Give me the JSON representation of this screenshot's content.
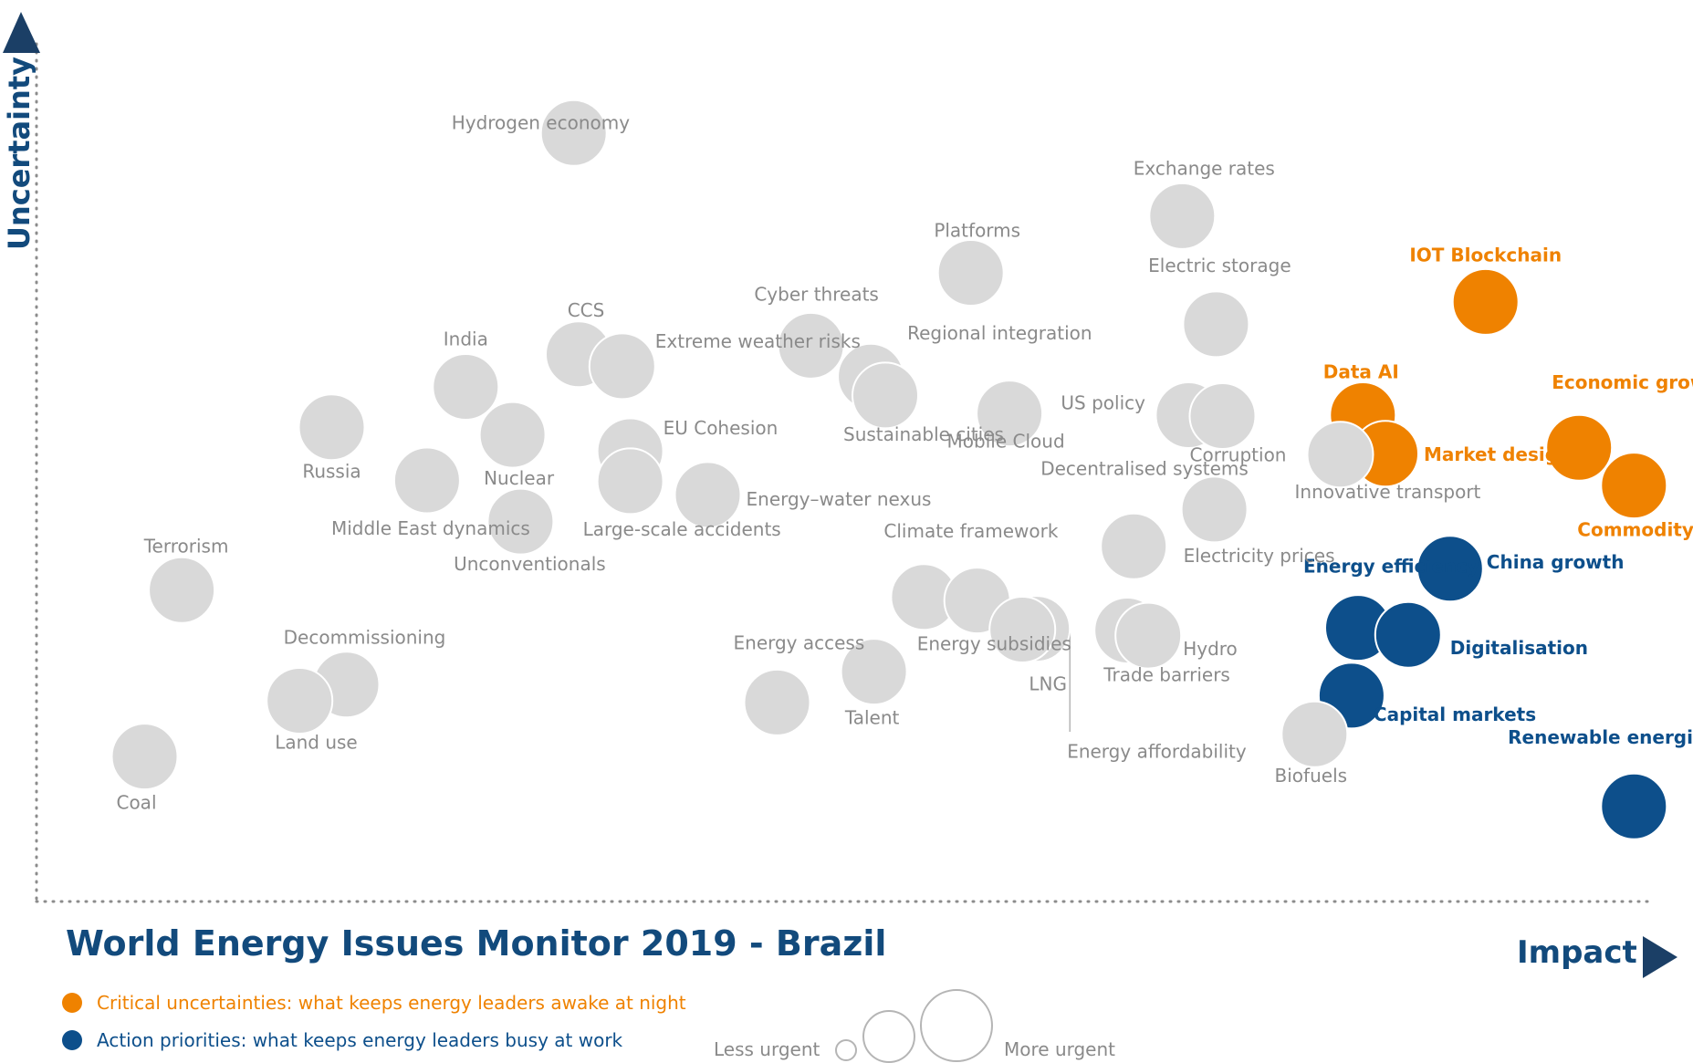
{
  "title": "World Energy Issues Monitor 2019 - Brazil",
  "x_axis_label": "Impact",
  "y_axis_label": "Uncertainty",
  "legend": {
    "critical": {
      "label": "Critical uncertainties: what keeps energy leaders awake at night",
      "color": "#ef8200"
    },
    "action": {
      "label": "Action priorities: what keeps energy leaders busy at work",
      "color": "#0d4f8b"
    }
  },
  "size_legend": {
    "less": "Less urgent",
    "more": "More urgent"
  },
  "colors": {
    "neutral": "#d9d9d9",
    "neutral_text": "#8a8a8a",
    "axis": "#1b3f66"
  },
  "chart_data": {
    "type": "scatter",
    "title": "World Energy Issues Monitor 2019 - Brazil",
    "xlabel": "Impact",
    "ylabel": "Uncertainty",
    "xlim": [
      0,
      1
    ],
    "ylim": [
      0,
      1
    ],
    "grid": false,
    "series": [
      {
        "name": "Critical uncertainties: what keeps energy leaders awake at night",
        "category": "critical",
        "points": [
          {
            "label": "IOT Blockchain",
            "x": 0.898,
            "y": 0.699
          },
          {
            "label": "Data AI",
            "x": 0.822,
            "y": 0.567
          },
          {
            "label": "Market design",
            "x": 0.836,
            "y": 0.522
          },
          {
            "label": "Economic growth",
            "x": 0.956,
            "y": 0.529
          },
          {
            "label": "Commodity Prices",
            "x": 0.99,
            "y": 0.485
          }
        ]
      },
      {
        "name": "Action priorities: what keeps energy leaders busy at work",
        "category": "action",
        "points": [
          {
            "label": "China growth",
            "x": 0.876,
            "y": 0.388
          },
          {
            "label": "Energy efficiency",
            "x": 0.819,
            "y": 0.319
          },
          {
            "label": "Digitalisation",
            "x": 0.85,
            "y": 0.311
          },
          {
            "label": "Capital markets",
            "x": 0.815,
            "y": 0.24
          },
          {
            "label": "Renewable energies",
            "x": 0.99,
            "y": 0.111
          }
        ]
      },
      {
        "category": "other",
        "points": [
          {
            "label": "Hydrogen economy",
            "x": 0.333,
            "y": 0.896
          },
          {
            "label": "Exchange rates",
            "x": 0.71,
            "y": 0.799
          },
          {
            "label": "Platforms",
            "x": 0.579,
            "y": 0.733
          },
          {
            "label": "Electric storage",
            "x": 0.731,
            "y": 0.673
          },
          {
            "label": "CCS",
            "x": 0.336,
            "y": 0.638
          },
          {
            "label": "Extreme weather risks",
            "x": 0.363,
            "y": 0.624
          },
          {
            "label": "Cyber threats",
            "x": 0.48,
            "y": 0.648
          },
          {
            "label": "Regional integration",
            "x": 0.517,
            "y": 0.612
          },
          {
            "label": "Sustainable cities",
            "x": 0.526,
            "y": 0.59
          },
          {
            "label": "India",
            "x": 0.266,
            "y": 0.6
          },
          {
            "label": "Nuclear",
            "x": 0.295,
            "y": 0.544
          },
          {
            "label": "Russia",
            "x": 0.183,
            "y": 0.553
          },
          {
            "label": "Middle East dynamics",
            "x": 0.242,
            "y": 0.491
          },
          {
            "label": "Mobile Cloud",
            "x": 0.603,
            "y": 0.569
          },
          {
            "label": "US policy",
            "x": 0.714,
            "y": 0.567
          },
          {
            "label": "Corruption",
            "x": 0.735,
            "y": 0.566
          },
          {
            "label": "Innovative transport",
            "x": 0.808,
            "y": 0.521
          },
          {
            "label": "EU Cohesion",
            "x": 0.368,
            "y": 0.525
          },
          {
            "label": "Large-scale accidents",
            "x": 0.368,
            "y": 0.49
          },
          {
            "label": "Energy–water nexus",
            "x": 0.416,
            "y": 0.474
          },
          {
            "label": "Unconventionals",
            "x": 0.3,
            "y": 0.443
          },
          {
            "label": "Terrorism",
            "x": 0.09,
            "y": 0.363
          },
          {
            "label": "Decentralised systems",
            "x": 0.68,
            "y": 0.414
          },
          {
            "label": "Electricity prices",
            "x": 0.73,
            "y": 0.457
          },
          {
            "label": "Climate framework",
            "x": 0.55,
            "y": 0.355
          },
          {
            "label": "Energy subsidies",
            "x": 0.583,
            "y": 0.351
          },
          {
            "label": "LNG",
            "x": 0.62,
            "y": 0.318
          },
          {
            "label": "Energy affordability",
            "x": 0.611,
            "y": 0.317
          },
          {
            "label": "Trade barriers",
            "x": 0.676,
            "y": 0.316
          },
          {
            "label": "Hydro",
            "x": 0.689,
            "y": 0.31
          },
          {
            "label": "Decommissioning",
            "x": 0.192,
            "y": 0.253
          },
          {
            "label": "Land use",
            "x": 0.163,
            "y": 0.234
          },
          {
            "label": "Energy access",
            "x": 0.459,
            "y": 0.232
          },
          {
            "label": "Talent",
            "x": 0.519,
            "y": 0.268
          },
          {
            "label": "Biofuels",
            "x": 0.792,
            "y": 0.195
          },
          {
            "label": "Coal",
            "x": 0.067,
            "y": 0.169
          }
        ]
      }
    ]
  }
}
